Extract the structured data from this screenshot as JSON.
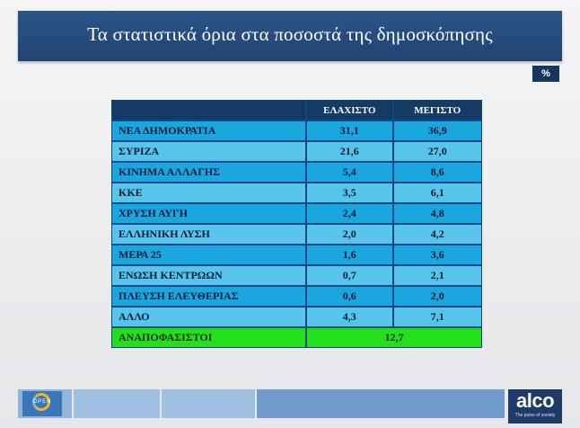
{
  "header": {
    "title": "Τα στατιστικά όρια στα ποσοστά της δημοσκόπησης"
  },
  "unit_badge": "%",
  "table": {
    "columns": [
      "",
      "ΕΛΑΧΙΣΤΟ",
      "ΜΕΓΙΣΤΟ"
    ],
    "rows": [
      {
        "party": "ΝΕΑ ΔΗΜΟΚΡΑΤΙΑ",
        "min": "31,1",
        "max": "36,9"
      },
      {
        "party": "ΣΥΡΙΖΑ",
        "min": "21,6",
        "max": "27,0"
      },
      {
        "party": "ΚΙΝΗΜΑ ΑΛΛΑΓΗΣ",
        "min": "5,4",
        "max": "8,6"
      },
      {
        "party": "ΚΚΕ",
        "min": "3,5",
        "max": "6,1"
      },
      {
        "party": "ΧΡΥΣΗ ΑΥΓΗ",
        "min": "2,4",
        "max": "4,8"
      },
      {
        "party": "ΕΛΛΗΝΙΚΗ ΛΥΣΗ",
        "min": "2,0",
        "max": "4,2"
      },
      {
        "party": "ΜΕΡΑ 25",
        "min": "1,6",
        "max": "3,6"
      },
      {
        "party": "ΕΝΩΣΗ ΚΕΝΤΡΩΩΝ",
        "min": "0,7",
        "max": "2,1"
      },
      {
        "party": "ΠΛΕΥΣΗ ΕΛΕΥΘΕΡΙΑΣ",
        "min": "0,6",
        "max": "2,0"
      },
      {
        "party": "ΑΛΛΟ",
        "min": "4,3",
        "max": "7,1"
      }
    ],
    "undecided": {
      "label": "ΑΝΑΠΟΦΑΣΙΣΤΟΙ",
      "value": "12,7"
    }
  },
  "footer": {
    "left_logo": "OPEN",
    "right_logo": "alco",
    "right_tagline": "The pulse of society"
  },
  "colors": {
    "title_bar": "#1f4474",
    "header_row": "#163a66",
    "row_dark": "#1aa6df",
    "row_light": "#57c4ec",
    "undecided_row": "#24e01c"
  }
}
